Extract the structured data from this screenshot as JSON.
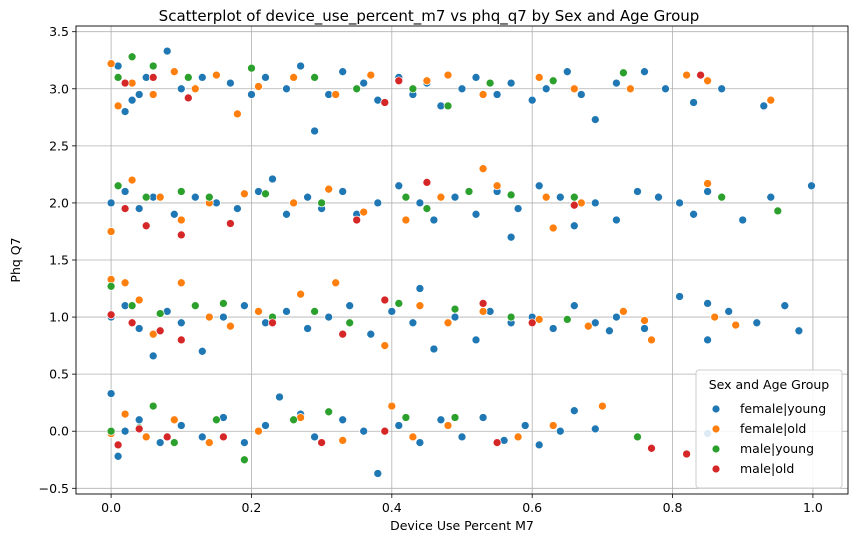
{
  "chart_data": {
    "type": "scatter",
    "title": "Scatterplot of device_use_percent_m7 vs phq_q7 by Sex and Age Group",
    "xlabel": "Device Use Percent M7",
    "ylabel": "Phq Q7",
    "xlim": [
      -0.05,
      1.05
    ],
    "ylim": [
      -0.55,
      3.55
    ],
    "xticks": [
      "0.0",
      "0.2",
      "0.4",
      "0.6",
      "0.8",
      "1.0"
    ],
    "yticks": [
      "−0.5",
      "0.0",
      "0.5",
      "1.0",
      "1.5",
      "2.0",
      "2.5",
      "3.0",
      "3.5"
    ],
    "grid": true,
    "legend": {
      "title": "Sex and Age Group",
      "placement": "lower-right",
      "entries": [
        "female|young",
        "female|old",
        "male|young",
        "male|old"
      ]
    },
    "colors": [
      "#1f77b4",
      "#ff7f0e",
      "#2ca02c",
      "#d62728"
    ],
    "series": [
      {
        "name": "female|young",
        "color": "#1f77b4",
        "points": [
          [
            0.01,
            3.2
          ],
          [
            0.02,
            3.05
          ],
          [
            0.03,
            2.9
          ],
          [
            0.05,
            3.1
          ],
          [
            0.08,
            3.33
          ],
          [
            0.1,
            3.0
          ],
          [
            0.13,
            3.1
          ],
          [
            0.17,
            3.05
          ],
          [
            0.2,
            2.95
          ],
          [
            0.22,
            3.1
          ],
          [
            0.25,
            3.0
          ],
          [
            0.27,
            3.2
          ],
          [
            0.29,
            2.63
          ],
          [
            0.31,
            2.95
          ],
          [
            0.33,
            3.15
          ],
          [
            0.36,
            3.05
          ],
          [
            0.38,
            2.9
          ],
          [
            0.41,
            3.1
          ],
          [
            0.43,
            2.95
          ],
          [
            0.45,
            3.05
          ],
          [
            0.47,
            2.85
          ],
          [
            0.5,
            3.0
          ],
          [
            0.52,
            3.1
          ],
          [
            0.55,
            2.95
          ],
          [
            0.57,
            3.05
          ],
          [
            0.6,
            2.9
          ],
          [
            0.62,
            3.0
          ],
          [
            0.65,
            3.15
          ],
          [
            0.67,
            2.95
          ],
          [
            0.69,
            2.73
          ],
          [
            0.72,
            3.05
          ],
          [
            0.76,
            3.15
          ],
          [
            0.79,
            3.0
          ],
          [
            0.83,
            2.88
          ],
          [
            0.87,
            3.0
          ],
          [
            0.93,
            2.85
          ],
          [
            0.02,
            2.8
          ],
          [
            0.04,
            2.95
          ],
          [
            0.0,
            2.0
          ],
          [
            0.02,
            2.1
          ],
          [
            0.04,
            1.95
          ],
          [
            0.06,
            2.05
          ],
          [
            0.09,
            1.9
          ],
          [
            0.12,
            2.05
          ],
          [
            0.15,
            2.0
          ],
          [
            0.18,
            1.95
          ],
          [
            0.21,
            2.1
          ],
          [
            0.23,
            2.21
          ],
          [
            0.25,
            1.9
          ],
          [
            0.28,
            2.05
          ],
          [
            0.3,
            1.95
          ],
          [
            0.33,
            2.1
          ],
          [
            0.35,
            1.9
          ],
          [
            0.38,
            2.0
          ],
          [
            0.41,
            2.15
          ],
          [
            0.44,
            2.0
          ],
          [
            0.46,
            1.85
          ],
          [
            0.49,
            2.05
          ],
          [
            0.52,
            1.9
          ],
          [
            0.55,
            2.1
          ],
          [
            0.58,
            1.95
          ],
          [
            0.61,
            2.15
          ],
          [
            0.64,
            2.05
          ],
          [
            0.66,
            1.8
          ],
          [
            0.69,
            2.0
          ],
          [
            0.72,
            1.85
          ],
          [
            0.75,
            2.1
          ],
          [
            0.78,
            2.05
          ],
          [
            0.81,
            2.0
          ],
          [
            0.83,
            1.9
          ],
          [
            0.85,
            2.1
          ],
          [
            0.9,
            1.85
          ],
          [
            0.94,
            2.05
          ],
          [
            0.998,
            2.15
          ],
          [
            0.57,
            1.7
          ],
          [
            0.0,
            1.0
          ],
          [
            0.02,
            1.1
          ],
          [
            0.04,
            0.9
          ],
          [
            0.06,
            0.66
          ],
          [
            0.08,
            1.05
          ],
          [
            0.1,
            0.95
          ],
          [
            0.13,
            0.7
          ],
          [
            0.16,
            1.0
          ],
          [
            0.19,
            1.1
          ],
          [
            0.22,
            0.95
          ],
          [
            0.25,
            1.05
          ],
          [
            0.28,
            0.9
          ],
          [
            0.31,
            1.0
          ],
          [
            0.34,
            1.1
          ],
          [
            0.37,
            0.85
          ],
          [
            0.4,
            1.05
          ],
          [
            0.43,
            0.95
          ],
          [
            0.44,
            1.25
          ],
          [
            0.46,
            0.72
          ],
          [
            0.49,
            1.0
          ],
          [
            0.52,
            0.8
          ],
          [
            0.54,
            1.05
          ],
          [
            0.57,
            0.95
          ],
          [
            0.6,
            1.0
          ],
          [
            0.63,
            0.9
          ],
          [
            0.66,
            1.1
          ],
          [
            0.69,
            0.95
          ],
          [
            0.72,
            1.0
          ],
          [
            0.76,
            0.9
          ],
          [
            0.81,
            1.18
          ],
          [
            0.85,
            1.12
          ],
          [
            0.88,
            1.05
          ],
          [
            0.92,
            0.95
          ],
          [
            0.96,
            1.1
          ],
          [
            0.98,
            0.88
          ],
          [
            0.85,
            0.8
          ],
          [
            0.71,
            0.88
          ],
          [
            0.0,
            0.33
          ],
          [
            0.01,
            -0.22
          ],
          [
            0.02,
            0.0
          ],
          [
            0.04,
            0.1
          ],
          [
            0.07,
            -0.1
          ],
          [
            0.1,
            0.05
          ],
          [
            0.13,
            -0.05
          ],
          [
            0.16,
            0.12
          ],
          [
            0.19,
            -0.1
          ],
          [
            0.22,
            0.05
          ],
          [
            0.24,
            0.3
          ],
          [
            0.27,
            0.15
          ],
          [
            0.29,
            -0.05
          ],
          [
            0.33,
            0.1
          ],
          [
            0.36,
            0.0
          ],
          [
            0.38,
            -0.37
          ],
          [
            0.41,
            0.05
          ],
          [
            0.44,
            -0.1
          ],
          [
            0.47,
            0.1
          ],
          [
            0.5,
            -0.05
          ],
          [
            0.53,
            0.12
          ],
          [
            0.56,
            -0.08
          ],
          [
            0.59,
            0.05
          ],
          [
            0.61,
            -0.12
          ],
          [
            0.64,
            0.0
          ],
          [
            0.66,
            0.18
          ],
          [
            0.69,
            0.02
          ],
          [
            0.85,
            -0.02
          ]
        ]
      },
      {
        "name": "female|old",
        "color": "#ff7f0e",
        "points": [
          [
            0.0,
            3.22
          ],
          [
            0.03,
            3.05
          ],
          [
            0.06,
            2.95
          ],
          [
            0.09,
            3.15
          ],
          [
            0.12,
            3.0
          ],
          [
            0.15,
            3.12
          ],
          [
            0.18,
            2.78
          ],
          [
            0.21,
            3.02
          ],
          [
            0.26,
            3.1
          ],
          [
            0.32,
            2.95
          ],
          [
            0.37,
            3.12
          ],
          [
            0.45,
            3.07
          ],
          [
            0.48,
            3.12
          ],
          [
            0.53,
            2.95
          ],
          [
            0.61,
            3.1
          ],
          [
            0.66,
            3.0
          ],
          [
            0.74,
            3.0
          ],
          [
            0.82,
            3.12
          ],
          [
            0.85,
            3.07
          ],
          [
            0.94,
            2.9
          ],
          [
            0.01,
            2.85
          ],
          [
            0.0,
            1.75
          ],
          [
            0.03,
            2.2
          ],
          [
            0.07,
            2.05
          ],
          [
            0.1,
            1.85
          ],
          [
            0.14,
            2.0
          ],
          [
            0.19,
            2.08
          ],
          [
            0.26,
            2.0
          ],
          [
            0.31,
            2.12
          ],
          [
            0.36,
            1.92
          ],
          [
            0.42,
            1.85
          ],
          [
            0.47,
            2.05
          ],
          [
            0.53,
            2.3
          ],
          [
            0.55,
            2.15
          ],
          [
            0.63,
            1.78
          ],
          [
            0.67,
            2.0
          ],
          [
            0.85,
            2.17
          ],
          [
            0.62,
            2.05
          ],
          [
            0.0,
            1.33
          ],
          [
            0.02,
            1.3
          ],
          [
            0.04,
            1.15
          ],
          [
            0.06,
            0.85
          ],
          [
            0.1,
            1.3
          ],
          [
            0.14,
            1.0
          ],
          [
            0.17,
            0.92
          ],
          [
            0.21,
            1.05
          ],
          [
            0.27,
            1.2
          ],
          [
            0.32,
            1.3
          ],
          [
            0.39,
            0.75
          ],
          [
            0.44,
            1.1
          ],
          [
            0.48,
            0.95
          ],
          [
            0.53,
            1.05
          ],
          [
            0.61,
            0.98
          ],
          [
            0.68,
            0.92
          ],
          [
            0.73,
            1.05
          ],
          [
            0.77,
            0.8
          ],
          [
            0.76,
            0.97
          ],
          [
            0.86,
            1.0
          ],
          [
            0.89,
            0.93
          ],
          [
            0.0,
            -0.02
          ],
          [
            0.02,
            0.15
          ],
          [
            0.05,
            -0.05
          ],
          [
            0.09,
            0.1
          ],
          [
            0.14,
            -0.1
          ],
          [
            0.21,
            0.0
          ],
          [
            0.27,
            0.12
          ],
          [
            0.33,
            -0.08
          ],
          [
            0.4,
            0.22
          ],
          [
            0.43,
            -0.05
          ],
          [
            0.48,
            0.05
          ],
          [
            0.58,
            -0.05
          ],
          [
            0.63,
            0.05
          ],
          [
            0.7,
            0.22
          ]
        ]
      },
      {
        "name": "male|young",
        "color": "#2ca02c",
        "points": [
          [
            0.01,
            3.1
          ],
          [
            0.03,
            3.28
          ],
          [
            0.06,
            3.2
          ],
          [
            0.11,
            3.1
          ],
          [
            0.2,
            3.18
          ],
          [
            0.29,
            3.1
          ],
          [
            0.35,
            3.0
          ],
          [
            0.43,
            3.0
          ],
          [
            0.48,
            2.85
          ],
          [
            0.54,
            3.05
          ],
          [
            0.63,
            3.07
          ],
          [
            0.73,
            3.14
          ],
          [
            0.01,
            2.15
          ],
          [
            0.05,
            2.05
          ],
          [
            0.1,
            2.1
          ],
          [
            0.14,
            2.05
          ],
          [
            0.22,
            2.08
          ],
          [
            0.3,
            2.0
          ],
          [
            0.42,
            2.05
          ],
          [
            0.45,
            1.95
          ],
          [
            0.51,
            2.1
          ],
          [
            0.57,
            2.07
          ],
          [
            0.66,
            2.05
          ],
          [
            0.87,
            2.05
          ],
          [
            0.95,
            1.93
          ],
          [
            0.0,
            1.27
          ],
          [
            0.03,
            1.1
          ],
          [
            0.07,
            1.03
          ],
          [
            0.12,
            1.1
          ],
          [
            0.16,
            1.12
          ],
          [
            0.23,
            1.0
          ],
          [
            0.29,
            1.05
          ],
          [
            0.34,
            0.95
          ],
          [
            0.41,
            1.12
          ],
          [
            0.49,
            1.07
          ],
          [
            0.57,
            1.0
          ],
          [
            0.65,
            0.98
          ],
          [
            0.0,
            0.0
          ],
          [
            0.04,
            0.03
          ],
          [
            0.06,
            0.22
          ],
          [
            0.09,
            -0.1
          ],
          [
            0.15,
            0.1
          ],
          [
            0.19,
            -0.25
          ],
          [
            0.26,
            0.1
          ],
          [
            0.31,
            0.17
          ],
          [
            0.42,
            0.12
          ],
          [
            0.49,
            0.12
          ],
          [
            0.75,
            -0.05
          ]
        ]
      },
      {
        "name": "male|old",
        "color": "#d62728",
        "points": [
          [
            0.02,
            3.05
          ],
          [
            0.06,
            3.1
          ],
          [
            0.11,
            2.92
          ],
          [
            0.39,
            2.88
          ],
          [
            0.41,
            3.07
          ],
          [
            0.84,
            3.12
          ],
          [
            0.02,
            1.95
          ],
          [
            0.05,
            1.8
          ],
          [
            0.1,
            1.72
          ],
          [
            0.17,
            1.82
          ],
          [
            0.35,
            1.85
          ],
          [
            0.45,
            2.18
          ],
          [
            0.66,
            1.98
          ],
          [
            0.0,
            1.02
          ],
          [
            0.03,
            0.95
          ],
          [
            0.07,
            0.88
          ],
          [
            0.1,
            0.8
          ],
          [
            0.23,
            0.95
          ],
          [
            0.33,
            0.85
          ],
          [
            0.39,
            1.15
          ],
          [
            0.53,
            1.12
          ],
          [
            0.6,
            0.95
          ],
          [
            0.01,
            -0.12
          ],
          [
            0.04,
            0.02
          ],
          [
            0.08,
            -0.05
          ],
          [
            0.16,
            -0.05
          ],
          [
            0.3,
            -0.1
          ],
          [
            0.39,
            0.0
          ],
          [
            0.55,
            -0.1
          ],
          [
            0.77,
            -0.15
          ],
          [
            0.82,
            -0.2
          ]
        ]
      }
    ]
  }
}
